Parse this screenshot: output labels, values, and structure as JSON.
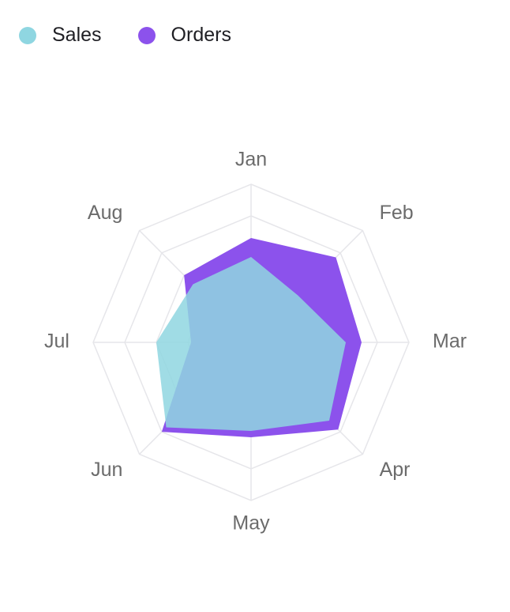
{
  "legend": {
    "items": [
      {
        "label": "Sales",
        "color": "#8fd6e1"
      },
      {
        "label": "Orders",
        "color": "#8c52ec"
      }
    ]
  },
  "chart_data": {
    "type": "radar",
    "categories": [
      "Jan",
      "Feb",
      "Mar",
      "Apr",
      "May",
      "Jun",
      "Jul",
      "Aug"
    ],
    "rmax": 5,
    "grid_levels": 5,
    "grid": true,
    "legend_position": "top-left",
    "series": [
      {
        "name": "Orders",
        "color": "#8c52ec",
        "opacity": 1.0,
        "values": [
          3.3,
          3.8,
          3.5,
          3.9,
          3.0,
          4.0,
          1.9,
          3.0
        ]
      },
      {
        "name": "Sales",
        "color": "#8fd6e1",
        "opacity": 0.85,
        "values": [
          2.7,
          2.1,
          3.0,
          3.5,
          2.8,
          3.8,
          3.0,
          2.6
        ]
      }
    ]
  }
}
